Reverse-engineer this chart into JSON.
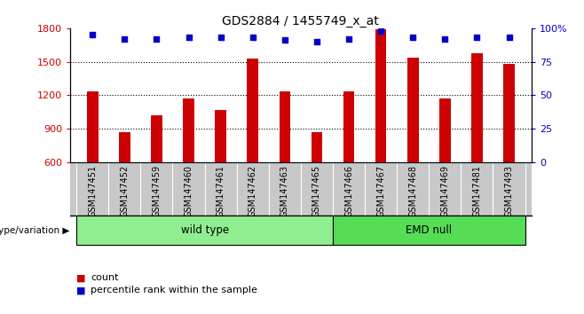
{
  "title": "GDS2884 / 1455749_x_at",
  "samples": [
    "GSM147451",
    "GSM147452",
    "GSM147459",
    "GSM147460",
    "GSM147461",
    "GSM147462",
    "GSM147463",
    "GSM147465",
    "GSM147466",
    "GSM147467",
    "GSM147468",
    "GSM147469",
    "GSM147481",
    "GSM147493"
  ],
  "counts": [
    1230,
    870,
    1020,
    1170,
    1070,
    1530,
    1230,
    870,
    1230,
    1790,
    1540,
    1170,
    1580,
    1480
  ],
  "percentiles": [
    95,
    92,
    92,
    93,
    93,
    93,
    91,
    90,
    92,
    98,
    93,
    92,
    93,
    93
  ],
  "bar_color": "#cc0000",
  "dot_color": "#0000cc",
  "ylim_left": [
    600,
    1800
  ],
  "ylim_right": [
    0,
    100
  ],
  "yticks_left": [
    600,
    900,
    1200,
    1500,
    1800
  ],
  "yticks_right": [
    0,
    25,
    50,
    75,
    100
  ],
  "yright_labels": [
    "0",
    "25",
    "50",
    "75",
    "100%"
  ],
  "groups": [
    {
      "label": "wild type",
      "start": 0,
      "end": 7,
      "color": "#90ee90"
    },
    {
      "label": "EMD null",
      "start": 8,
      "end": 13,
      "color": "#55dd55"
    }
  ],
  "group_row_label": "genotype/variation",
  "legend_count_label": "count",
  "legend_pct_label": "percentile rank within the sample",
  "plot_bg": "#ffffff",
  "xtick_bg": "#c8c8c8",
  "dotted_line_color": "#000000",
  "label_color_left": "#cc0000",
  "label_color_right": "#0000cc",
  "bar_width": 0.35
}
